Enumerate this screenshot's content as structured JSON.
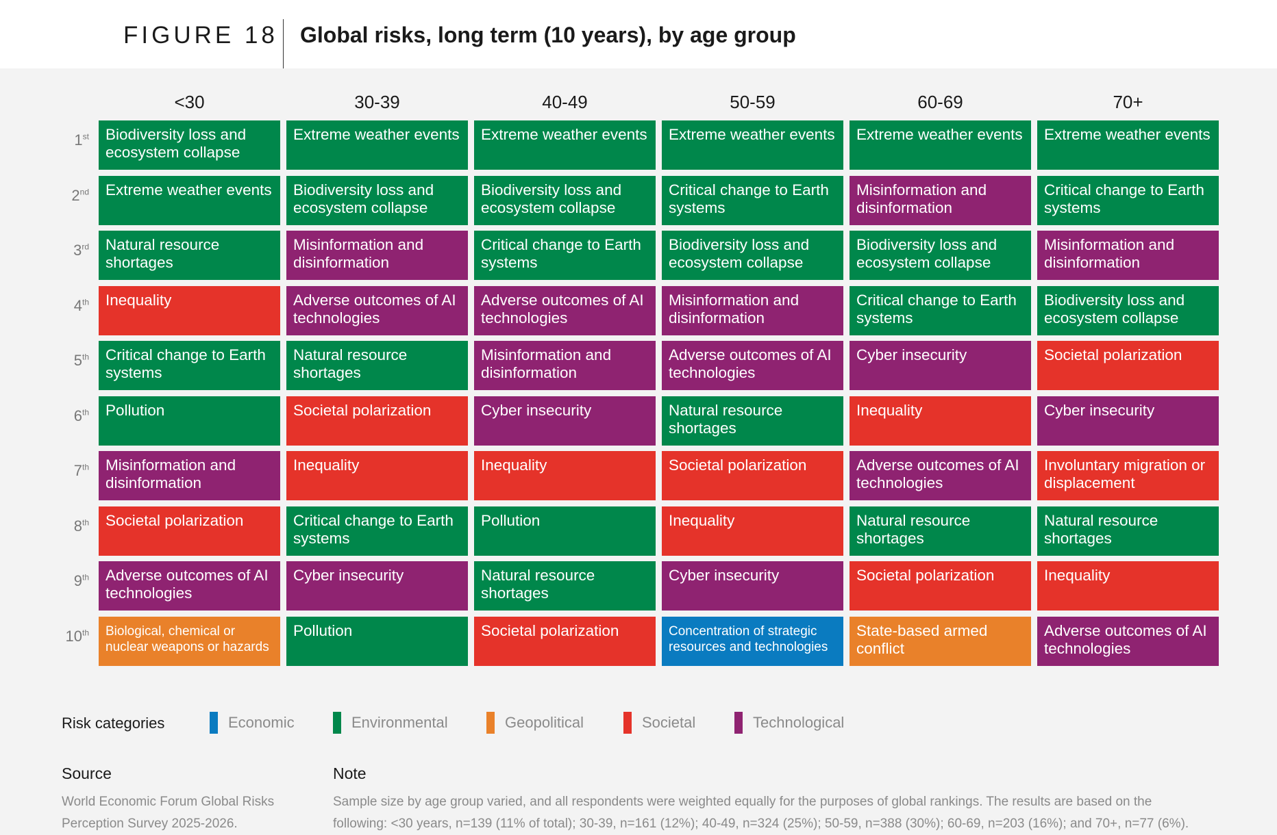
{
  "header": {
    "figure_label": "FIGURE 18",
    "title": "Global risks, long term (10 years), by age group"
  },
  "colors": {
    "Economic": "#0a7bc0",
    "Environmental": "#00874b",
    "Geopolitical": "#e9812a",
    "Societal": "#e5332a",
    "Technological": "#8f2371"
  },
  "chart_data": {
    "type": "table",
    "columns": [
      "<30",
      "30-39",
      "40-49",
      "50-59",
      "60-69",
      "70+"
    ],
    "ranks": [
      {
        "num": "1",
        "suffix": "st"
      },
      {
        "num": "2",
        "suffix": "nd"
      },
      {
        "num": "3",
        "suffix": "rd"
      },
      {
        "num": "4",
        "suffix": "th"
      },
      {
        "num": "5",
        "suffix": "th"
      },
      {
        "num": "6",
        "suffix": "th"
      },
      {
        "num": "7",
        "suffix": "th"
      },
      {
        "num": "8",
        "suffix": "th"
      },
      {
        "num": "9",
        "suffix": "th"
      },
      {
        "num": "10",
        "suffix": "th"
      }
    ],
    "cells": [
      [
        {
          "text": "Biodiversity loss and ecosystem collapse",
          "category": "Environmental"
        },
        {
          "text": "Extreme weather events",
          "category": "Environmental"
        },
        {
          "text": "Extreme weather events",
          "category": "Environmental"
        },
        {
          "text": "Extreme weather events",
          "category": "Environmental"
        },
        {
          "text": "Extreme weather events",
          "category": "Environmental"
        },
        {
          "text": "Extreme weather events",
          "category": "Environmental"
        }
      ],
      [
        {
          "text": "Extreme weather events",
          "category": "Environmental"
        },
        {
          "text": "Biodiversity loss and ecosystem collapse",
          "category": "Environmental"
        },
        {
          "text": "Biodiversity loss and ecosystem collapse",
          "category": "Environmental"
        },
        {
          "text": "Critical change to Earth systems",
          "category": "Environmental"
        },
        {
          "text": "Misinformation and disinformation",
          "category": "Technological"
        },
        {
          "text": "Critical change to Earth systems",
          "category": "Environmental"
        }
      ],
      [
        {
          "text": "Natural resource shortages",
          "category": "Environmental"
        },
        {
          "text": "Misinformation and disinformation",
          "category": "Technological"
        },
        {
          "text": "Critical change to Earth systems",
          "category": "Environmental"
        },
        {
          "text": "Biodiversity loss and ecosystem collapse",
          "category": "Environmental"
        },
        {
          "text": "Biodiversity loss and ecosystem collapse",
          "category": "Environmental"
        },
        {
          "text": "Misinformation and disinformation",
          "category": "Technological"
        }
      ],
      [
        {
          "text": "Inequality",
          "category": "Societal"
        },
        {
          "text": "Adverse outcomes of AI technologies",
          "category": "Technological"
        },
        {
          "text": "Adverse outcomes of AI technologies",
          "category": "Technological"
        },
        {
          "text": "Misinformation and disinformation",
          "category": "Technological"
        },
        {
          "text": "Critical change to Earth systems",
          "category": "Environmental"
        },
        {
          "text": "Biodiversity loss and ecosystem collapse",
          "category": "Environmental"
        }
      ],
      [
        {
          "text": "Critical change to Earth systems",
          "category": "Environmental"
        },
        {
          "text": "Natural resource shortages",
          "category": "Environmental"
        },
        {
          "text": "Misinformation and disinformation",
          "category": "Technological"
        },
        {
          "text": "Adverse outcomes of AI technologies",
          "category": "Technological"
        },
        {
          "text": "Cyber insecurity",
          "category": "Technological"
        },
        {
          "text": "Societal polarization",
          "category": "Societal"
        }
      ],
      [
        {
          "text": "Pollution",
          "category": "Environmental"
        },
        {
          "text": "Societal polarization",
          "category": "Societal"
        },
        {
          "text": "Cyber insecurity",
          "category": "Technological"
        },
        {
          "text": "Natural resource shortages",
          "category": "Environmental"
        },
        {
          "text": "Inequality",
          "category": "Societal"
        },
        {
          "text": "Cyber insecurity",
          "category": "Technological"
        }
      ],
      [
        {
          "text": "Misinformation and disinformation",
          "category": "Technological"
        },
        {
          "text": "Inequality",
          "category": "Societal"
        },
        {
          "text": "Inequality",
          "category": "Societal"
        },
        {
          "text": "Societal polarization",
          "category": "Societal"
        },
        {
          "text": "Adverse outcomes of AI technologies",
          "category": "Technological"
        },
        {
          "text": "Involuntary migration or displacement",
          "category": "Societal"
        }
      ],
      [
        {
          "text": "Societal polarization",
          "category": "Societal"
        },
        {
          "text": "Critical change to Earth systems",
          "category": "Environmental"
        },
        {
          "text": "Pollution",
          "category": "Environmental"
        },
        {
          "text": "Inequality",
          "category": "Societal"
        },
        {
          "text": "Natural resource shortages",
          "category": "Environmental"
        },
        {
          "text": "Natural resource shortages",
          "category": "Environmental"
        }
      ],
      [
        {
          "text": "Adverse outcomes of AI technologies",
          "category": "Technological"
        },
        {
          "text": "Cyber insecurity",
          "category": "Technological"
        },
        {
          "text": "Natural resource shortages",
          "category": "Environmental"
        },
        {
          "text": "Cyber insecurity",
          "category": "Technological"
        },
        {
          "text": "Societal polarization",
          "category": "Societal"
        },
        {
          "text": "Inequality",
          "category": "Societal"
        }
      ],
      [
        {
          "text": "Biological, chemical or nuclear weapons or hazards",
          "category": "Geopolitical"
        },
        {
          "text": "Pollution",
          "category": "Environmental"
        },
        {
          "text": "Societal polarization",
          "category": "Societal"
        },
        {
          "text": "Concentration of strategic resources and technologies",
          "category": "Economic"
        },
        {
          "text": "State-based armed conflict",
          "category": "Geopolitical"
        },
        {
          "text": "Adverse outcomes of AI technologies",
          "category": "Technological"
        }
      ]
    ]
  },
  "legend": {
    "title": "Risk categories",
    "items": [
      {
        "label": "Economic",
        "color": "#0a7bc0"
      },
      {
        "label": "Environmental",
        "color": "#00874b"
      },
      {
        "label": "Geopolitical",
        "color": "#e9812a"
      },
      {
        "label": "Societal",
        "color": "#e5332a"
      },
      {
        "label": "Technological",
        "color": "#8f2371"
      }
    ]
  },
  "source": {
    "heading": "Source",
    "text": "World Economic Forum Global Risks Perception Survey 2025-2026."
  },
  "note": {
    "heading": "Note",
    "text": "Sample size by age group varied, and all respondents were weighted equally for the purposes of global rankings. The results are based on the following: <30 years, n=139 (11% of total); 30-39, n=161 (12%); 40-49, n=324 (25%); 50-59, n=388 (30%); 60-69, n=203 (16%); and 70+, n=77 (6%)."
  }
}
